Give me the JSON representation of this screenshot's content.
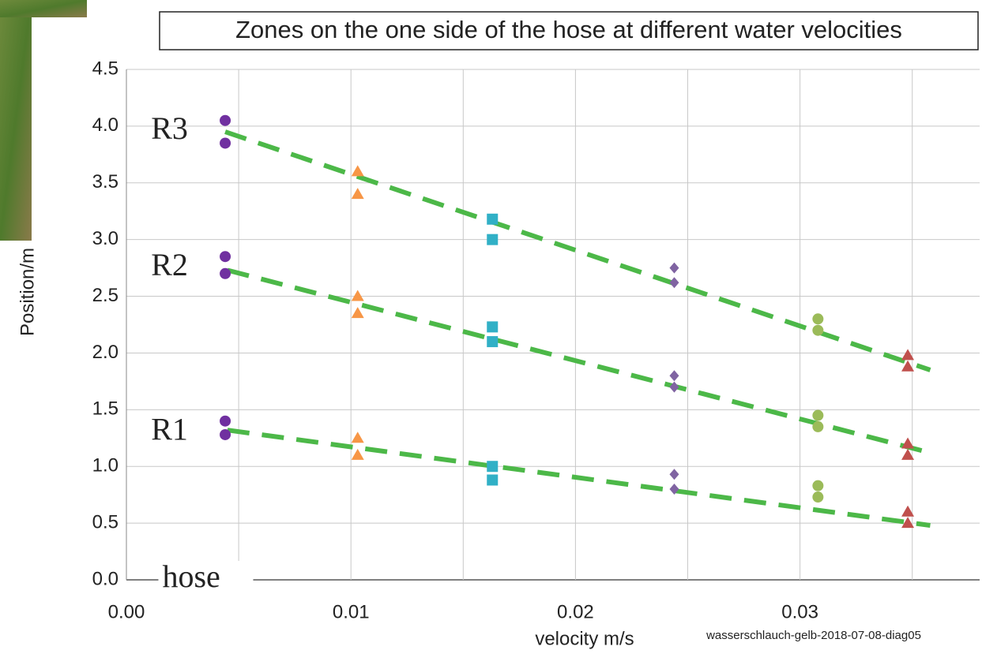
{
  "chart_data": {
    "type": "scatter",
    "title": "Zones on the one side of the hose at different water velocities",
    "x_label": "velocity m/s",
    "y_label": "Position/m",
    "credit": "wasserschlauch-gelb-2018-07-08-diag05",
    "xlim": [
      0,
      0.038
    ],
    "ylim": [
      0,
      4.5
    ],
    "xticks": [
      {
        "value": 0,
        "label": "0.00"
      },
      0.01,
      0.02,
      0.03
    ],
    "xgrid": [
      0.005,
      0.015,
      0.025,
      0.035
    ],
    "yticks": [
      {
        "value": 0,
        "label": "0.0"
      },
      0.5,
      {
        "value": 1,
        "label": "1.0"
      },
      1.5,
      {
        "value": 2,
        "label": "2.0"
      },
      2.5,
      {
        "value": 3,
        "label": "3.0"
      },
      3.5,
      {
        "value": 4,
        "label": "4.0"
      },
      4.5
    ],
    "grid": true,
    "series": [
      {
        "marker": "circle",
        "color": "#7030a0",
        "x": [
          0.0044,
          0.0044,
          0.0044,
          0.0044,
          0.0044,
          0.0044
        ],
        "values": [
          4.05,
          3.85,
          2.85,
          2.7,
          1.4,
          1.28
        ]
      },
      {
        "marker": "triangle",
        "color": "#f79646",
        "x": [
          0.0103,
          0.0103,
          0.0103,
          0.0103,
          0.0103,
          0.0103
        ],
        "values": [
          3.6,
          3.4,
          2.5,
          2.35,
          1.25,
          1.1
        ]
      },
      {
        "marker": "square",
        "color": "#31b0c6",
        "x": [
          0.0163,
          0.0163,
          0.0163,
          0.0163,
          0.0163,
          0.0163
        ],
        "values": [
          3.18,
          3.0,
          2.23,
          2.1,
          1.0,
          0.88
        ]
      },
      {
        "marker": "diamond",
        "color": "#8064a2",
        "x": [
          0.0244,
          0.0244,
          0.0244,
          0.0244,
          0.0244,
          0.0244
        ],
        "values": [
          2.75,
          2.62,
          1.8,
          1.7,
          0.93,
          0.8
        ]
      },
      {
        "marker": "circle",
        "color": "#9bbb59",
        "x": [
          0.0308,
          0.0308,
          0.0308,
          0.0308,
          0.0308,
          0.0308
        ],
        "values": [
          2.3,
          2.2,
          1.45,
          1.35,
          0.83,
          0.73
        ]
      },
      {
        "marker": "triangle",
        "color": "#c0504d",
        "x": [
          0.0348,
          0.0348,
          0.0348,
          0.0348,
          0.0348,
          0.0348
        ],
        "values": [
          1.98,
          1.88,
          1.2,
          1.1,
          0.6,
          0.5
        ]
      }
    ],
    "trend_color": "#4cb848",
    "trends": [
      {
        "x": [
          0.0044,
          0.0358
        ],
        "values": [
          3.95,
          1.85
        ]
      },
      {
        "x": [
          0.0045,
          0.0358
        ],
        "values": [
          2.73,
          1.12
        ]
      },
      {
        "x": [
          0.0045,
          0.0358
        ],
        "values": [
          1.32,
          0.48
        ]
      }
    ],
    "annotations": [
      {
        "text": "R3",
        "x": 0.0011,
        "y": 3.95
      },
      {
        "text": "R2",
        "x": 0.0011,
        "y": 2.75
      },
      {
        "text": "R1",
        "x": 0.0011,
        "y": 1.3
      },
      {
        "text": "hose",
        "x": 0.0016,
        "y": 0
      }
    ]
  }
}
